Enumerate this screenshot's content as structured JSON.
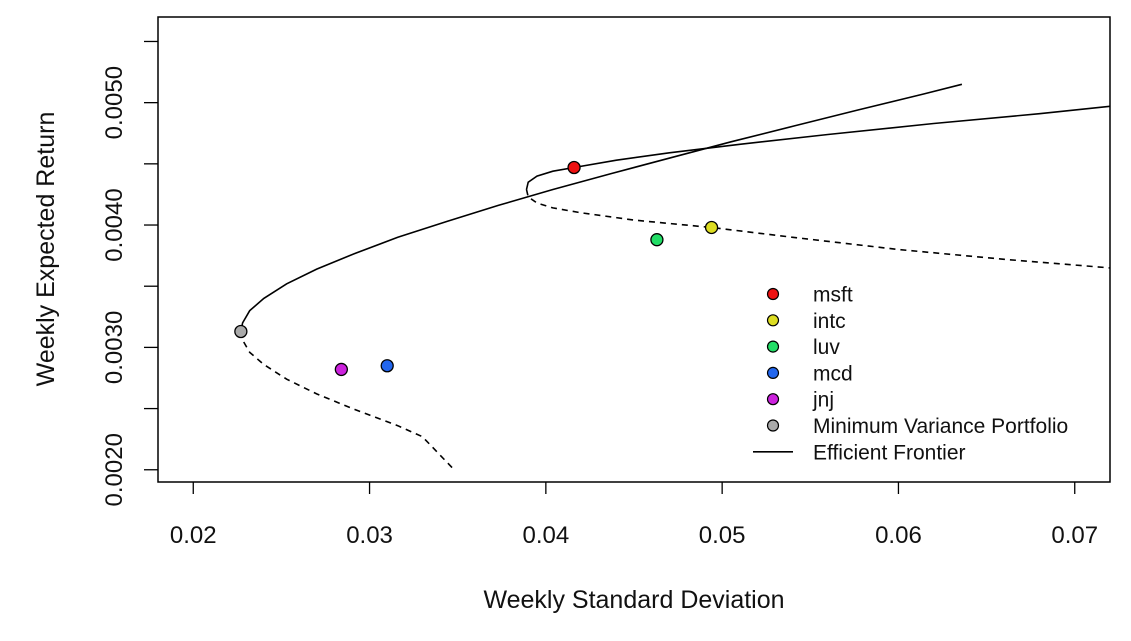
{
  "chart_data": {
    "type": "scatter",
    "title": "",
    "xlabel": "Weekly Standard Deviation",
    "ylabel": "Weekly Expected Return",
    "xlim": [
      0.018,
      0.072
    ],
    "ylim": [
      0.0019,
      0.0057
    ],
    "xticks": [
      0.02,
      0.03,
      0.04,
      0.05,
      0.06,
      0.07
    ],
    "xtick_labels": [
      "0.02",
      "0.03",
      "0.04",
      "0.05",
      "0.06",
      "0.07"
    ],
    "yticks": [
      0.002,
      0.0025,
      0.003,
      0.0035,
      0.004,
      0.0045,
      0.005,
      0.0055
    ],
    "ytick_labels": [
      "0.0020",
      "",
      "0.0030",
      "",
      "0.0040",
      "",
      "0.0050",
      ""
    ],
    "grid": false,
    "legend_position": "bottom-right",
    "points": [
      {
        "name": "msft",
        "x": 0.0416,
        "y": 0.00447,
        "color": "#ee1111"
      },
      {
        "name": "intc",
        "x": 0.0494,
        "y": 0.00398,
        "color": "#dddd22"
      },
      {
        "name": "luv",
        "x": 0.0463,
        "y": 0.00388,
        "color": "#22dd66"
      },
      {
        "name": "mcd",
        "x": 0.031,
        "y": 0.00285,
        "color": "#2266ee"
      },
      {
        "name": "jnj",
        "x": 0.0284,
        "y": 0.00282,
        "color": "#cc22dd"
      },
      {
        "name": "Minimum Variance Portfolio",
        "x": 0.0227,
        "y": 0.00313,
        "color": "#aaaaaa"
      }
    ],
    "curves": [
      {
        "name": "Efficient Frontier",
        "style": "solid",
        "x": [
          0.0227,
          0.0228,
          0.0232,
          0.024,
          0.0253,
          0.027,
          0.0292,
          0.0316,
          0.0344,
          0.0373,
          0.0404,
          0.0437,
          0.0471,
          0.0505,
          0.0541,
          0.0577,
          0.0614,
          0.0636
        ],
        "y": [
          0.00313,
          0.0032,
          0.0033,
          0.0034,
          0.00352,
          0.00364,
          0.00377,
          0.0039,
          0.00403,
          0.00416,
          0.00429,
          0.00442,
          0.00455,
          0.00468,
          0.00481,
          0.00494,
          0.00507,
          0.00515
        ]
      },
      {
        "style": "dashed",
        "x": [
          0.0227,
          0.0228,
          0.0232,
          0.024,
          0.0253,
          0.027,
          0.0292,
          0.0316,
          0.033,
          0.0348
        ],
        "y": [
          0.00313,
          0.00306,
          0.00296,
          0.00286,
          0.00274,
          0.00262,
          0.00249,
          0.00236,
          0.00227,
          0.002
        ]
      },
      {
        "style": "solid",
        "x": [
          0.0389,
          0.039,
          0.0395,
          0.0404,
          0.0416,
          0.044,
          0.047,
          0.051,
          0.056,
          0.062,
          0.068,
          0.072
        ],
        "y": [
          0.00429,
          0.00435,
          0.0044,
          0.00444,
          0.00447,
          0.00453,
          0.00459,
          0.00466,
          0.00474,
          0.00483,
          0.00491,
          0.00497
        ]
      },
      {
        "style": "dashed",
        "x": [
          0.0389,
          0.039,
          0.0395,
          0.0404,
          0.042,
          0.045,
          0.0494,
          0.054,
          0.06,
          0.066,
          0.072
        ],
        "y": [
          0.00429,
          0.00423,
          0.00418,
          0.00414,
          0.0041,
          0.00404,
          0.00398,
          0.0039,
          0.0038,
          0.00372,
          0.00365
        ]
      }
    ],
    "legend": [
      {
        "label": "msft",
        "symbol": "point",
        "color": "#ee1111"
      },
      {
        "label": "intc",
        "symbol": "point",
        "color": "#dddd22"
      },
      {
        "label": "luv",
        "symbol": "point",
        "color": "#22dd66"
      },
      {
        "label": "mcd",
        "symbol": "point",
        "color": "#2266ee"
      },
      {
        "label": "jnj",
        "symbol": "point",
        "color": "#cc22dd"
      },
      {
        "label": "Minimum Variance Portfolio",
        "symbol": "point",
        "color": "#aaaaaa"
      },
      {
        "label": "Efficient Frontier",
        "symbol": "line",
        "color": "#000000"
      }
    ]
  }
}
